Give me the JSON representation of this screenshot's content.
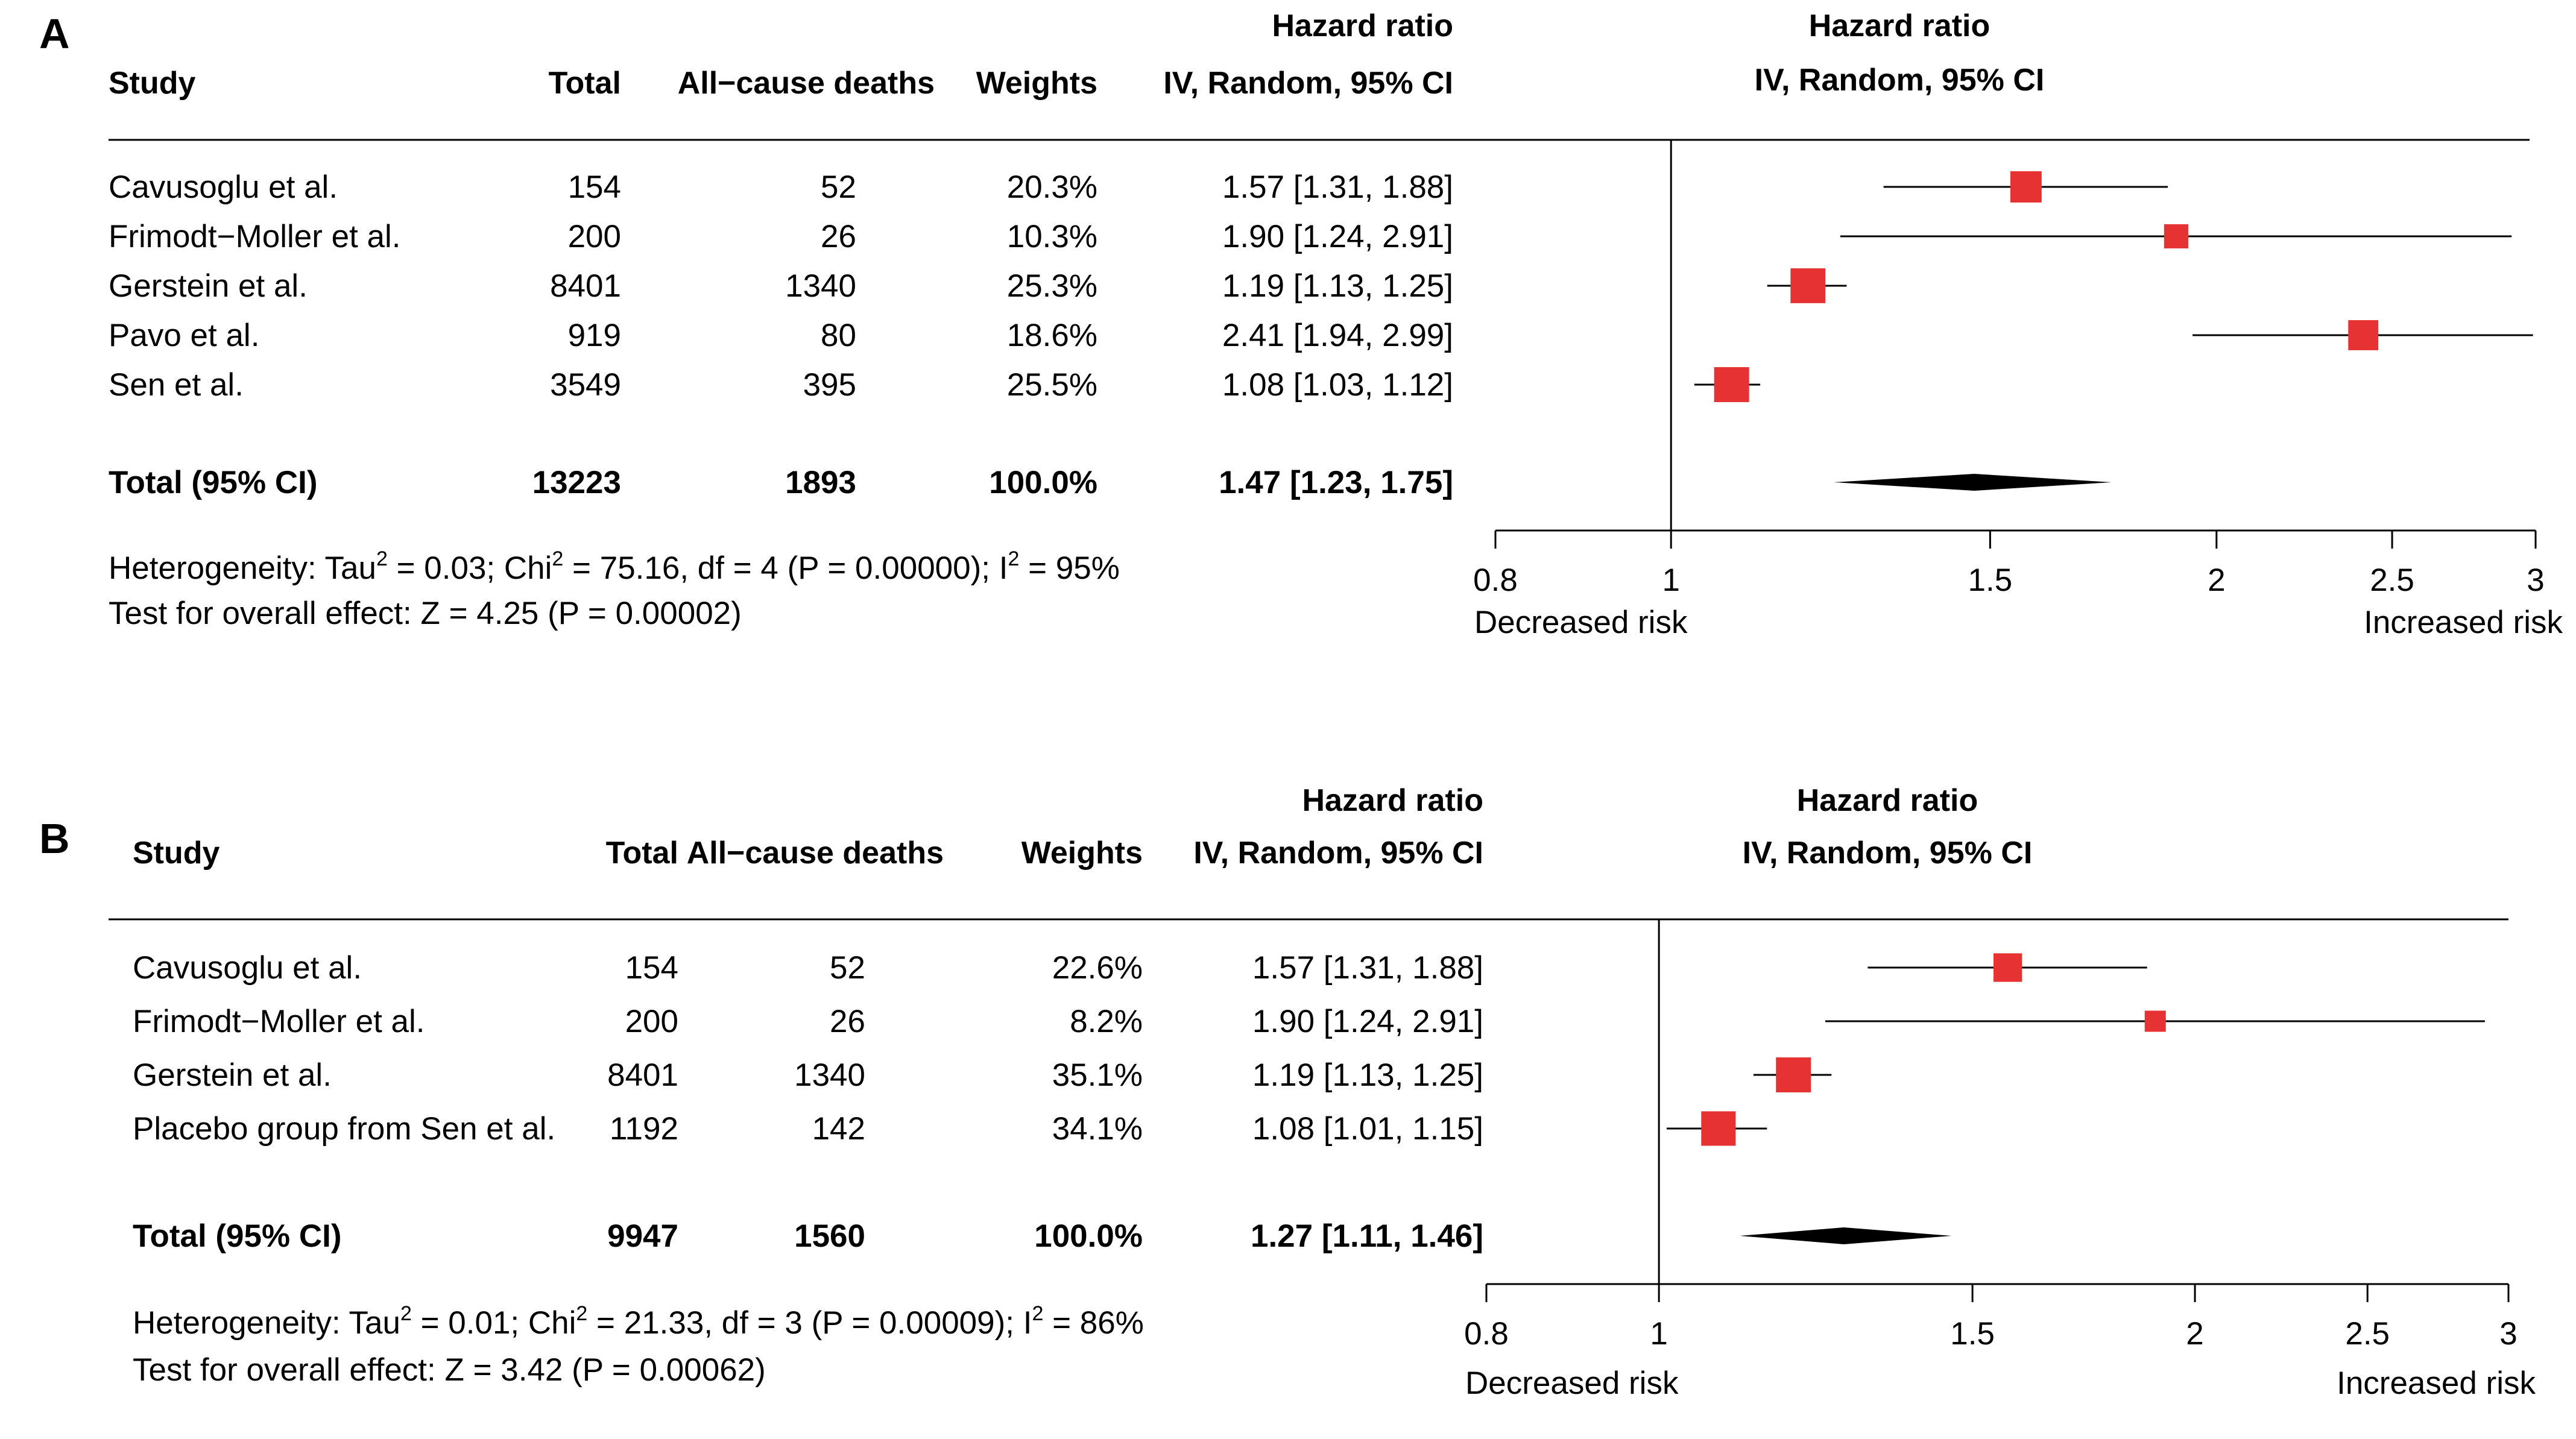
{
  "figure": {
    "colors": {
      "box": "#e63232",
      "line": "#000000",
      "text": "#000000"
    }
  },
  "chart_data": [
    {
      "type": "forest",
      "panel": "A",
      "header": {
        "study": "Study",
        "total": "Total",
        "deaths": "All−cause deaths",
        "weights": "Weights",
        "hr_title": "Hazard ratio",
        "hr_method": "IV, Random, 95% CI"
      },
      "studies": [
        {
          "name": "Cavusoglu et al.",
          "total": "154",
          "deaths": "52",
          "weight": "20.3%",
          "weight_value": 20.3,
          "ci_text": "1.57 [1.31, 1.88]",
          "hr": 1.57,
          "lo": 1.31,
          "hi": 1.88
        },
        {
          "name": "Frimodt−Moller et al.",
          "total": "200",
          "deaths": "26",
          "weight": "10.3%",
          "weight_value": 10.3,
          "ci_text": "1.90 [1.24, 2.91]",
          "hr": 1.9,
          "lo": 1.24,
          "hi": 2.91
        },
        {
          "name": "Gerstein et al.",
          "total": "8401",
          "deaths": "1340",
          "weight": "25.3%",
          "weight_value": 25.3,
          "ci_text": "1.19 [1.13, 1.25]",
          "hr": 1.19,
          "lo": 1.13,
          "hi": 1.25
        },
        {
          "name": "Pavo et al.",
          "total": "919",
          "deaths": "80",
          "weight": "18.6%",
          "weight_value": 18.6,
          "ci_text": "2.41 [1.94, 2.99]",
          "hr": 2.41,
          "lo": 1.94,
          "hi": 2.99
        },
        {
          "name": "Sen et al.",
          "total": "3549",
          "deaths": "395",
          "weight": "25.5%",
          "weight_value": 25.5,
          "ci_text": "1.08 [1.03, 1.12]",
          "hr": 1.08,
          "lo": 1.03,
          "hi": 1.12
        }
      ],
      "total": {
        "label": "Total (95% CI)",
        "total": "13223",
        "deaths": "1893",
        "weight": "100.0%",
        "ci_text": "1.47 [1.23,  1.75]",
        "hr": 1.47,
        "lo": 1.23,
        "hi": 1.75
      },
      "heterogeneity": {
        "p1": "Heterogeneity: Tau",
        "s1": "2",
        "p2": " = 0.03; Chi",
        "s2": "2",
        "p3": " = 75.16, df = 4 (P = 0.00000); I",
        "s3": "2",
        "p4": " = 95%"
      },
      "overall": "Test for overall effect: Z = 4.25 (P = 0.00002)",
      "axis": {
        "scale": "log",
        "xlim": [
          0.8,
          3
        ],
        "ticks": [
          0.8,
          1,
          1.5,
          2,
          2.5,
          3
        ],
        "tick_labels": [
          "0.8",
          "1",
          "1.5",
          "2",
          "2.5",
          "3"
        ],
        "reference": 1,
        "left_label": "Decreased risk",
        "right_label": "Increased risk"
      }
    },
    {
      "type": "forest",
      "panel": "B",
      "header": {
        "study": "Study",
        "total": "Total",
        "deaths": "All−cause deaths",
        "weights": "Weights",
        "hr_title": "Hazard ratio",
        "hr_method": "IV, Random, 95% CI"
      },
      "studies": [
        {
          "name": "Cavusoglu et al.",
          "total": "154",
          "deaths": "52",
          "weight": "22.6%",
          "weight_value": 22.6,
          "ci_text": "1.57 [1.31, 1.88]",
          "hr": 1.57,
          "lo": 1.31,
          "hi": 1.88
        },
        {
          "name": "Frimodt−Moller et al.",
          "total": "200",
          "deaths": "26",
          "weight": "8.2%",
          "weight_value": 8.2,
          "ci_text": "1.90 [1.24, 2.91]",
          "hr": 1.9,
          "lo": 1.24,
          "hi": 2.91
        },
        {
          "name": "Gerstein et al.",
          "total": "8401",
          "deaths": "1340",
          "weight": "35.1%",
          "weight_value": 35.1,
          "ci_text": "1.19 [1.13, 1.25]",
          "hr": 1.19,
          "lo": 1.13,
          "hi": 1.25
        },
        {
          "name": "Placebo group from Sen et al.",
          "total": "1192",
          "deaths": "142",
          "weight": "34.1%",
          "weight_value": 34.1,
          "ci_text": "1.08 [1.01, 1.15]",
          "hr": 1.08,
          "lo": 1.01,
          "hi": 1.15
        }
      ],
      "total": {
        "label": "Total (95% CI)",
        "total": "9947",
        "deaths": "1560",
        "weight": "100.0%",
        "ci_text": "1.27 [1.11,  1.46]",
        "hr": 1.27,
        "lo": 1.11,
        "hi": 1.46
      },
      "heterogeneity": {
        "p1": "Heterogeneity: Tau",
        "s1": "2",
        "p2": " = 0.01; Chi",
        "s2": "2",
        "p3": " = 21.33, df = 3 (P = 0.00009); I",
        "s3": "2",
        "p4": " = 86%"
      },
      "overall": "Test for overall effect: Z = 3.42 (P = 0.00062)",
      "axis": {
        "scale": "log",
        "xlim": [
          0.8,
          3
        ],
        "ticks": [
          0.8,
          1,
          1.5,
          2,
          2.5,
          3
        ],
        "tick_labels": [
          "0.8",
          "1",
          "1.5",
          "2",
          "2.5",
          "3"
        ],
        "reference": 1,
        "left_label": "Decreased risk",
        "right_label": "Increased risk"
      }
    }
  ]
}
